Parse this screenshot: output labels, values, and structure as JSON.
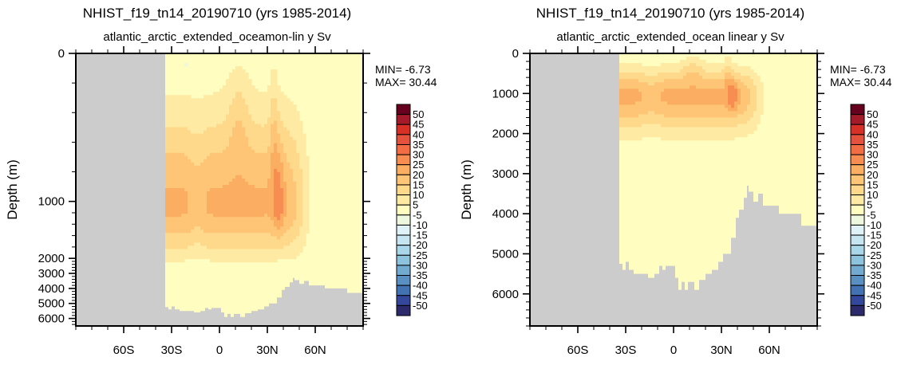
{
  "chart_data": [
    {
      "type": "heatmap",
      "subtype": "filled-contour",
      "title": "NHIST_f19_tn14_20190710 (yrs 1985-2014)",
      "subtitle": "atlantic_arctic_extended_oceamon-lin y Sv",
      "xlabel": "",
      "ylabel": "Depth (m)",
      "y_scale": "non-linear (stretched top 1000 m)",
      "xlim": [
        -90,
        90
      ],
      "ylim": [
        6500,
        0
      ],
      "x_ticks": [
        {
          "value": -60,
          "label": "60S"
        },
        {
          "value": -30,
          "label": "30S"
        },
        {
          "value": 0,
          "label": "0"
        },
        {
          "value": 30,
          "label": "30N"
        },
        {
          "value": 60,
          "label": "60N"
        }
      ],
      "y_ticks": [
        {
          "value": 0,
          "label": "0"
        },
        {
          "value": 1000,
          "label": "1000"
        },
        {
          "value": 2000,
          "label": "2000"
        },
        {
          "value": 3000,
          "label": "3000"
        },
        {
          "value": 4000,
          "label": "4000"
        },
        {
          "value": 5000,
          "label": "5000"
        },
        {
          "value": 6000,
          "label": "6000"
        }
      ],
      "stats": {
        "min_label": "MIN= -6.73",
        "max_label": "MAX= 30.44",
        "min": -6.73,
        "max": 30.44
      },
      "land_lat_south": -34,
      "features": [
        {
          "description": "deep overturning cell core",
          "lat": 37,
          "depth": 1000,
          "value_range": "25-30"
        },
        {
          "description": "broad 20-25 Sv band",
          "lat_range": [
            -34,
            40
          ],
          "depth_range": [
            800,
            1300
          ]
        },
        {
          "description": "weak negative patches",
          "lat": [
            -22,
            -14
          ],
          "depth": 50,
          "value_range": "-10 to -5"
        }
      ],
      "bathymetry_depth_m": [
        [
          -34,
          5250
        ],
        [
          -32,
          5400
        ],
        [
          -30,
          5200
        ],
        [
          -28,
          5400
        ],
        [
          -25,
          5500
        ],
        [
          -20,
          5500
        ],
        [
          -16,
          5600
        ],
        [
          -12,
          5500
        ],
        [
          -9,
          5300
        ],
        [
          -7,
          5400
        ],
        [
          -5,
          5300
        ],
        [
          -1,
          5300
        ],
        [
          1,
          5600
        ],
        [
          3,
          5900
        ],
        [
          5,
          5700
        ],
        [
          7,
          5900
        ],
        [
          9,
          5700
        ],
        [
          13,
          5900
        ],
        [
          16,
          5650
        ],
        [
          20,
          5500
        ],
        [
          24,
          5400
        ],
        [
          28,
          5200
        ],
        [
          31,
          5000
        ],
        [
          36,
          4600
        ],
        [
          39,
          4100
        ],
        [
          41,
          3900
        ],
        [
          44,
          3600
        ],
        [
          46,
          3300
        ],
        [
          47,
          3450
        ],
        [
          50,
          3700
        ],
        [
          53,
          3500
        ],
        [
          56,
          3800
        ],
        [
          63,
          3800
        ],
        [
          66,
          4000
        ],
        [
          80,
          4300
        ],
        [
          90,
          4300
        ]
      ]
    },
    {
      "type": "heatmap",
      "subtype": "filled-contour",
      "title": "NHIST_f19_tn14_20190710 (yrs 1985-2014)",
      "subtitle": "atlantic_arctic_extended_ocean linear y Sv",
      "xlabel": "",
      "ylabel": "Depth (m)",
      "y_scale": "linear",
      "xlim": [
        -90,
        90
      ],
      "ylim": [
        6800,
        0
      ],
      "x_ticks": [
        {
          "value": -60,
          "label": "60S"
        },
        {
          "value": -30,
          "label": "30S"
        },
        {
          "value": 0,
          "label": "0"
        },
        {
          "value": 30,
          "label": "30N"
        },
        {
          "value": 60,
          "label": "60N"
        }
      ],
      "y_ticks": [
        {
          "value": 0,
          "label": "0"
        },
        {
          "value": 1000,
          "label": "1000"
        },
        {
          "value": 2000,
          "label": "2000"
        },
        {
          "value": 3000,
          "label": "3000"
        },
        {
          "value": 4000,
          "label": "4000"
        },
        {
          "value": 5000,
          "label": "5000"
        },
        {
          "value": 6000,
          "label": "6000"
        }
      ],
      "stats": {
        "min_label": "MIN= -6.73",
        "max_label": "MAX= 30.44",
        "min": -6.73,
        "max": 30.44
      },
      "land_lat_south": -34,
      "features": [
        {
          "description": "deep overturning cell core",
          "lat": 37,
          "depth": 1000,
          "value_range": "25-30"
        },
        {
          "description": "broad 20-25 Sv band",
          "lat_range": [
            -34,
            40
          ],
          "depth_range": [
            800,
            1300
          ]
        }
      ],
      "bathymetry_depth_m": [
        [
          -34,
          5250
        ],
        [
          -32,
          5400
        ],
        [
          -30,
          5200
        ],
        [
          -28,
          5400
        ],
        [
          -25,
          5500
        ],
        [
          -20,
          5500
        ],
        [
          -16,
          5600
        ],
        [
          -12,
          5500
        ],
        [
          -9,
          5300
        ],
        [
          -7,
          5400
        ],
        [
          -5,
          5300
        ],
        [
          -1,
          5300
        ],
        [
          1,
          5600
        ],
        [
          3,
          5900
        ],
        [
          5,
          5700
        ],
        [
          7,
          5900
        ],
        [
          9,
          5700
        ],
        [
          13,
          5900
        ],
        [
          16,
          5650
        ],
        [
          20,
          5500
        ],
        [
          24,
          5400
        ],
        [
          28,
          5200
        ],
        [
          31,
          5000
        ],
        [
          36,
          4600
        ],
        [
          39,
          4100
        ],
        [
          41,
          3900
        ],
        [
          44,
          3600
        ],
        [
          46,
          3300
        ],
        [
          47,
          3450
        ],
        [
          50,
          3700
        ],
        [
          53,
          3500
        ],
        [
          56,
          3800
        ],
        [
          63,
          3800
        ],
        [
          66,
          4000
        ],
        [
          80,
          4300
        ],
        [
          90,
          4300
        ]
      ]
    }
  ],
  "colorbar": {
    "unit": "Sv",
    "labels": [
      "50",
      "45",
      "40",
      "35",
      "30",
      "25",
      "20",
      "15",
      "10",
      "5",
      "-5",
      "-10",
      "-15",
      "-20",
      "-25",
      "-30",
      "-35",
      "-40",
      "-45",
      "-50"
    ],
    "colors": [
      "#67001f",
      "#a31a28",
      "#d73027",
      "#e4513d",
      "#f26d43",
      "#f88d52",
      "#fbae61",
      "#fdc575",
      "#fed98b",
      "#feeaa3",
      "#fffdbf",
      "#eef8de",
      "#dff2f8",
      "#c5e5f0",
      "#a9d7e9",
      "#8ec3de",
      "#73abd0",
      "#5a8fc2",
      "#4272b2",
      "#33489a",
      "#2c2a6b"
    ],
    "land_color": "#cccccc"
  }
}
